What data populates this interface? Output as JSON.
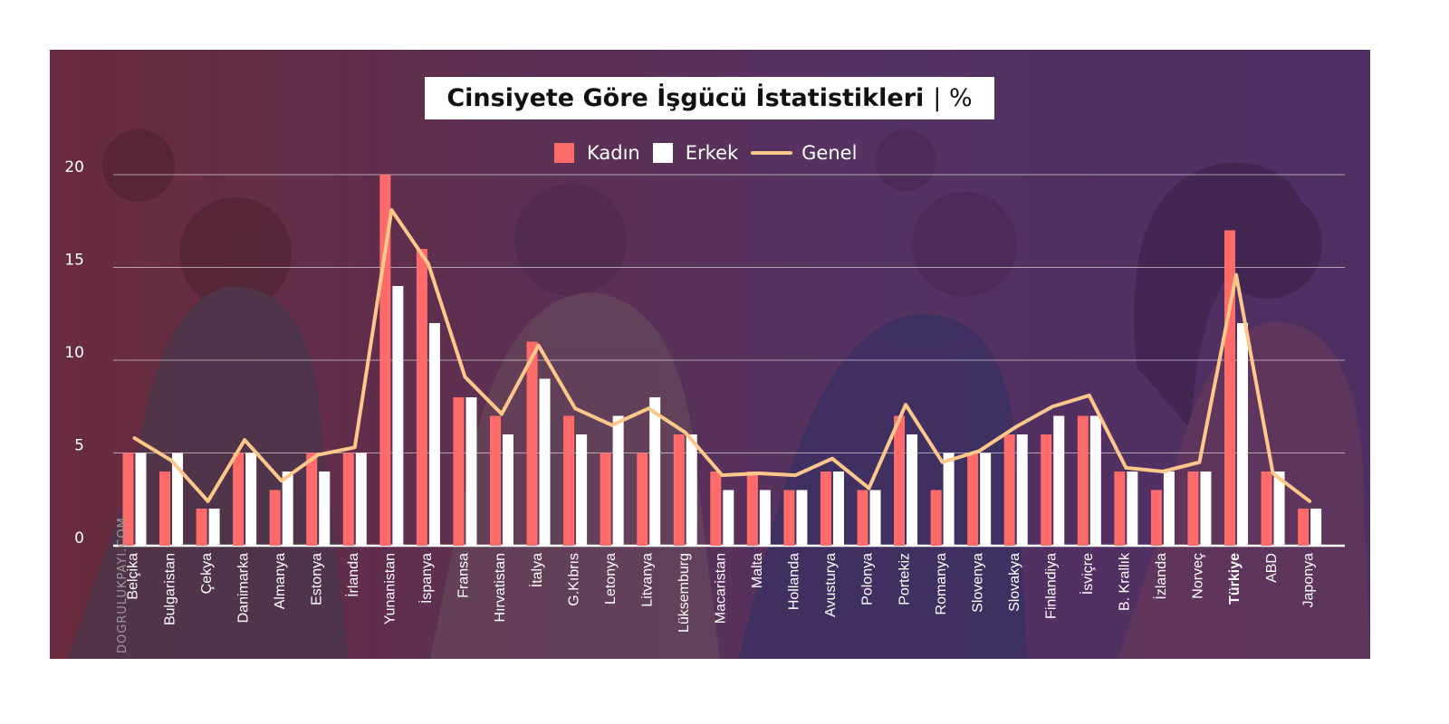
{
  "title": "Cinsiyete Göre İşgücü İstatistikleri",
  "title_unit": "| %",
  "watermark": "DOGRULUKPAYI.COM",
  "legend": [
    {
      "label": "Kadın",
      "color": "#ff6b6b",
      "kind": "bar"
    },
    {
      "label": "Erkek",
      "color": "#ffffff",
      "kind": "bar"
    },
    {
      "label": "Genel",
      "color": "#ffc88a",
      "kind": "line"
    }
  ],
  "chart_data": {
    "type": "bar",
    "title": "Cinsiyete Göre İşgücü İstatistikleri | %",
    "ylim": [
      0,
      20
    ],
    "yticks": [
      0,
      5,
      10,
      15,
      20
    ],
    "grid": true,
    "legend_position": "top",
    "highlight_category": "Türkiye",
    "categories": [
      "Belçika",
      "Bulgaristan",
      "Çekya",
      "Danimarka",
      "Almanya",
      "Estonya",
      "İrlanda",
      "Yunanistan",
      "İspanya",
      "Fransa",
      "Hırvatistan",
      "İtalya",
      "G.Kıbrıs",
      "Letonya",
      "Litvanya",
      "Lüksemburg",
      "Macaristan",
      "Malta",
      "Hollanda",
      "Avusturya",
      "Polonya",
      "Portekiz",
      "Romanya",
      "Slovenya",
      "Slovakya",
      "Finlandiya",
      "İsviçre",
      "B. Krallık",
      "İzlanda",
      "Norveç",
      "Türkiye",
      "ABD",
      "Japonya"
    ],
    "series": [
      {
        "name": "Kadın",
        "kind": "bar",
        "color": "#ff6b6b",
        "values": [
          5,
          4,
          2,
          5,
          3,
          5,
          5,
          20,
          16,
          8,
          7,
          11,
          7,
          5,
          5,
          6,
          4,
          4,
          3,
          4,
          3,
          7,
          3,
          5,
          6,
          6,
          7,
          4,
          3,
          4,
          17,
          4,
          2
        ]
      },
      {
        "name": "Erkek",
        "kind": "bar",
        "color": "#ffffff",
        "values": [
          5,
          5,
          2,
          5,
          4,
          4,
          5,
          14,
          12,
          8,
          6,
          9,
          6,
          7,
          8,
          6,
          3,
          3,
          3,
          4,
          3,
          6,
          5,
          5,
          6,
          7,
          7,
          4,
          4,
          4,
          12,
          4,
          2
        ]
      },
      {
        "name": "Genel",
        "kind": "line",
        "color": "#ffc88a",
        "values": [
          5.8,
          4.6,
          2.4,
          5.7,
          3.5,
          4.9,
          5.3,
          18.1,
          15.2,
          9.1,
          7.1,
          10.8,
          7.4,
          6.5,
          7.4,
          6.1,
          3.8,
          3.9,
          3.8,
          4.7,
          3.1,
          7.6,
          4.5,
          5.1,
          6.4,
          7.5,
          8.1,
          4.2,
          4.0,
          4.5,
          14.6,
          3.9,
          2.4
        ]
      }
    ]
  }
}
